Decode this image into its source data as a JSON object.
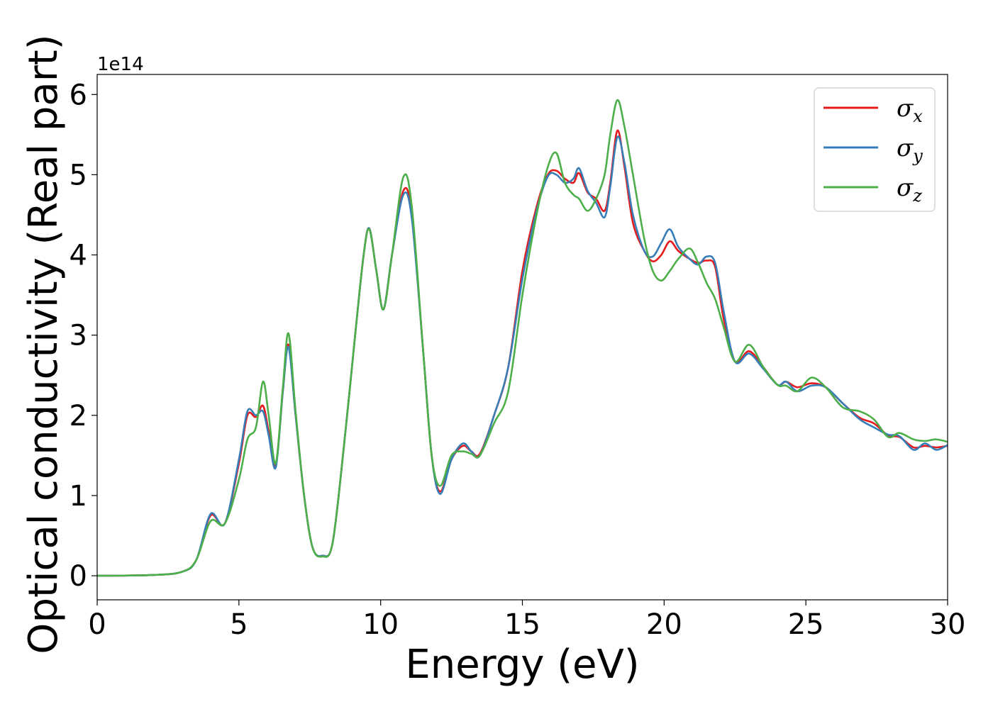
{
  "chart_data": {
    "type": "line",
    "title": "",
    "xlabel": "Energy (eV)",
    "ylabel": "Optical conductivity (Real part)",
    "y_offset_label": "1e14",
    "xlim": [
      0,
      30
    ],
    "ylim": [
      -0.3,
      6.25
    ],
    "x_ticks": [
      0,
      5,
      10,
      15,
      20,
      25,
      30
    ],
    "y_ticks": [
      0,
      1,
      2,
      3,
      4,
      5,
      6
    ],
    "grid": false,
    "legend_position": "top-right",
    "series": [
      {
        "name": "σ_x",
        "legend_symbol": "σ",
        "legend_sub": "x",
        "color": "#e41a1c",
        "points": [
          [
            0,
            0
          ],
          [
            2,
            0.01
          ],
          [
            3,
            0.05
          ],
          [
            3.5,
            0.2
          ],
          [
            4,
            0.75
          ],
          [
            4.5,
            0.65
          ],
          [
            5,
            1.4
          ],
          [
            5.3,
            2.0
          ],
          [
            5.6,
            1.98
          ],
          [
            5.85,
            2.12
          ],
          [
            6.05,
            1.8
          ],
          [
            6.3,
            1.38
          ],
          [
            6.55,
            2.3
          ],
          [
            6.75,
            2.88
          ],
          [
            7,
            2.0
          ],
          [
            7.3,
            1.0
          ],
          [
            7.6,
            0.35
          ],
          [
            7.95,
            0.25
          ],
          [
            8.3,
            0.4
          ],
          [
            8.7,
            1.6
          ],
          [
            9.1,
            3.0
          ],
          [
            9.4,
            4.0
          ],
          [
            9.6,
            4.33
          ],
          [
            9.85,
            3.8
          ],
          [
            10.1,
            3.32
          ],
          [
            10.4,
            4.0
          ],
          [
            10.8,
            4.8
          ],
          [
            11.1,
            4.5
          ],
          [
            11.5,
            2.8
          ],
          [
            11.8,
            1.5
          ],
          [
            12.1,
            1.05
          ],
          [
            12.5,
            1.45
          ],
          [
            12.9,
            1.62
          ],
          [
            13.2,
            1.55
          ],
          [
            13.5,
            1.52
          ],
          [
            14,
            2.0
          ],
          [
            14.5,
            2.6
          ],
          [
            15,
            3.8
          ],
          [
            15.5,
            4.6
          ],
          [
            15.9,
            5.0
          ],
          [
            16.2,
            5.05
          ],
          [
            16.5,
            4.95
          ],
          [
            16.8,
            4.9
          ],
          [
            17,
            5.02
          ],
          [
            17.3,
            4.78
          ],
          [
            17.6,
            4.7
          ],
          [
            17.9,
            4.55
          ],
          [
            18.1,
            4.9
          ],
          [
            18.35,
            5.55
          ],
          [
            18.6,
            5.1
          ],
          [
            18.9,
            4.4
          ],
          [
            19.3,
            4.05
          ],
          [
            19.6,
            3.92
          ],
          [
            19.9,
            4.0
          ],
          [
            20.2,
            4.17
          ],
          [
            20.5,
            4.05
          ],
          [
            20.9,
            3.95
          ],
          [
            21.2,
            3.9
          ],
          [
            21.5,
            3.93
          ],
          [
            21.8,
            3.85
          ],
          [
            22.1,
            3.2
          ],
          [
            22.5,
            2.67
          ],
          [
            23,
            2.8
          ],
          [
            23.5,
            2.6
          ],
          [
            24,
            2.38
          ],
          [
            24.3,
            2.42
          ],
          [
            24.7,
            2.35
          ],
          [
            25.2,
            2.4
          ],
          [
            25.7,
            2.35
          ],
          [
            26.3,
            2.15
          ],
          [
            26.9,
            1.97
          ],
          [
            27.4,
            1.9
          ],
          [
            27.9,
            1.75
          ],
          [
            28.3,
            1.73
          ],
          [
            28.8,
            1.6
          ],
          [
            29.2,
            1.62
          ],
          [
            29.6,
            1.6
          ],
          [
            30,
            1.62
          ]
        ]
      },
      {
        "name": "σ_y",
        "legend_symbol": "σ",
        "legend_sub": "y",
        "color": "#377eb8",
        "points": [
          [
            0,
            0
          ],
          [
            2,
            0.01
          ],
          [
            3,
            0.05
          ],
          [
            3.5,
            0.2
          ],
          [
            4,
            0.77
          ],
          [
            4.5,
            0.65
          ],
          [
            5,
            1.45
          ],
          [
            5.3,
            2.05
          ],
          [
            5.6,
            2.0
          ],
          [
            5.85,
            2.05
          ],
          [
            6.05,
            1.75
          ],
          [
            6.3,
            1.35
          ],
          [
            6.55,
            2.3
          ],
          [
            6.75,
            2.85
          ],
          [
            7,
            2.0
          ],
          [
            7.3,
            1.0
          ],
          [
            7.6,
            0.35
          ],
          [
            7.95,
            0.25
          ],
          [
            8.3,
            0.4
          ],
          [
            8.7,
            1.6
          ],
          [
            9.1,
            3.0
          ],
          [
            9.4,
            4.0
          ],
          [
            9.6,
            4.33
          ],
          [
            9.85,
            3.8
          ],
          [
            10.1,
            3.32
          ],
          [
            10.4,
            4.0
          ],
          [
            10.8,
            4.75
          ],
          [
            11.1,
            4.45
          ],
          [
            11.5,
            2.8
          ],
          [
            11.8,
            1.5
          ],
          [
            12.1,
            1.02
          ],
          [
            12.5,
            1.45
          ],
          [
            12.9,
            1.65
          ],
          [
            13.2,
            1.55
          ],
          [
            13.5,
            1.5
          ],
          [
            14,
            2.0
          ],
          [
            14.5,
            2.6
          ],
          [
            15,
            3.7
          ],
          [
            15.5,
            4.55
          ],
          [
            15.9,
            4.98
          ],
          [
            16.2,
            5.0
          ],
          [
            16.5,
            4.9
          ],
          [
            16.8,
            4.95
          ],
          [
            17,
            5.08
          ],
          [
            17.3,
            4.8
          ],
          [
            17.6,
            4.65
          ],
          [
            17.9,
            4.47
          ],
          [
            18.1,
            4.85
          ],
          [
            18.35,
            5.47
          ],
          [
            18.6,
            5.15
          ],
          [
            18.9,
            4.5
          ],
          [
            19.3,
            4.05
          ],
          [
            19.6,
            3.98
          ],
          [
            19.9,
            4.15
          ],
          [
            20.2,
            4.32
          ],
          [
            20.5,
            4.1
          ],
          [
            20.9,
            3.95
          ],
          [
            21.2,
            3.88
          ],
          [
            21.5,
            3.98
          ],
          [
            21.8,
            3.9
          ],
          [
            22.1,
            3.3
          ],
          [
            22.5,
            2.67
          ],
          [
            23,
            2.77
          ],
          [
            23.5,
            2.58
          ],
          [
            24,
            2.38
          ],
          [
            24.3,
            2.42
          ],
          [
            24.7,
            2.3
          ],
          [
            25.2,
            2.37
          ],
          [
            25.7,
            2.35
          ],
          [
            26.3,
            2.15
          ],
          [
            26.9,
            1.95
          ],
          [
            27.4,
            1.85
          ],
          [
            27.9,
            1.76
          ],
          [
            28.3,
            1.74
          ],
          [
            28.8,
            1.57
          ],
          [
            29.2,
            1.65
          ],
          [
            29.6,
            1.57
          ],
          [
            30,
            1.63
          ]
        ]
      },
      {
        "name": "σ_z",
        "legend_symbol": "σ",
        "legend_sub": "z",
        "color": "#4daf4a",
        "points": [
          [
            0,
            0
          ],
          [
            2,
            0.01
          ],
          [
            3,
            0.05
          ],
          [
            3.5,
            0.2
          ],
          [
            4,
            0.68
          ],
          [
            4.5,
            0.65
          ],
          [
            5,
            1.2
          ],
          [
            5.3,
            1.7
          ],
          [
            5.6,
            1.85
          ],
          [
            5.85,
            2.42
          ],
          [
            6.05,
            2.0
          ],
          [
            6.3,
            1.4
          ],
          [
            6.55,
            2.35
          ],
          [
            6.75,
            3.02
          ],
          [
            7,
            2.05
          ],
          [
            7.3,
            1.0
          ],
          [
            7.6,
            0.35
          ],
          [
            7.95,
            0.24
          ],
          [
            8.3,
            0.4
          ],
          [
            8.7,
            1.6
          ],
          [
            9.1,
            3.0
          ],
          [
            9.4,
            4.0
          ],
          [
            9.6,
            4.32
          ],
          [
            9.85,
            3.8
          ],
          [
            10.1,
            3.32
          ],
          [
            10.4,
            4.0
          ],
          [
            10.8,
            4.97
          ],
          [
            11.1,
            4.6
          ],
          [
            11.5,
            2.8
          ],
          [
            11.8,
            1.5
          ],
          [
            12.1,
            1.12
          ],
          [
            12.5,
            1.5
          ],
          [
            12.9,
            1.55
          ],
          [
            13.2,
            1.52
          ],
          [
            13.5,
            1.5
          ],
          [
            14,
            1.9
          ],
          [
            14.5,
            2.3
          ],
          [
            15,
            3.5
          ],
          [
            15.5,
            4.5
          ],
          [
            15.9,
            5.1
          ],
          [
            16.2,
            5.27
          ],
          [
            16.5,
            4.9
          ],
          [
            16.8,
            4.75
          ],
          [
            17,
            4.7
          ],
          [
            17.3,
            4.55
          ],
          [
            17.6,
            4.7
          ],
          [
            17.9,
            5.0
          ],
          [
            18.1,
            5.5
          ],
          [
            18.35,
            5.93
          ],
          [
            18.6,
            5.6
          ],
          [
            18.9,
            5.0
          ],
          [
            19.3,
            4.2
          ],
          [
            19.6,
            3.8
          ],
          [
            19.9,
            3.68
          ],
          [
            20.2,
            3.8
          ],
          [
            20.5,
            3.95
          ],
          [
            20.9,
            4.08
          ],
          [
            21.2,
            3.9
          ],
          [
            21.5,
            3.65
          ],
          [
            21.8,
            3.45
          ],
          [
            22.1,
            3.1
          ],
          [
            22.5,
            2.67
          ],
          [
            23,
            2.88
          ],
          [
            23.5,
            2.6
          ],
          [
            24,
            2.38
          ],
          [
            24.3,
            2.37
          ],
          [
            24.7,
            2.3
          ],
          [
            25.2,
            2.47
          ],
          [
            25.7,
            2.35
          ],
          [
            26.3,
            2.1
          ],
          [
            26.9,
            2.05
          ],
          [
            27.4,
            1.95
          ],
          [
            27.9,
            1.73
          ],
          [
            28.3,
            1.78
          ],
          [
            28.8,
            1.7
          ],
          [
            29.2,
            1.68
          ],
          [
            29.6,
            1.7
          ],
          [
            30,
            1.67
          ]
        ]
      }
    ]
  }
}
